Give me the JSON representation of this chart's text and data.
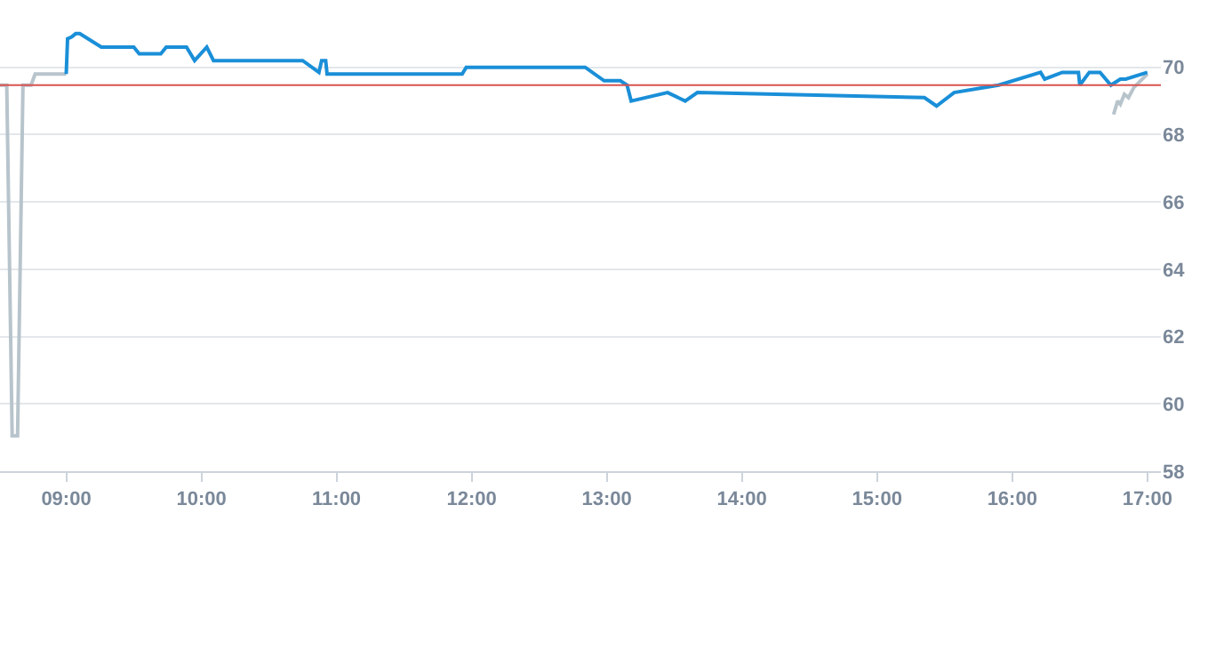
{
  "chart_data": {
    "type": "line",
    "xlim": [
      8.51,
      17.1
    ],
    "ylim": [
      58,
      72
    ],
    "xticks": [
      {
        "value": 9,
        "label": "09:00"
      },
      {
        "value": 10,
        "label": "10:00"
      },
      {
        "value": 11,
        "label": "11:00"
      },
      {
        "value": 12,
        "label": "12:00"
      },
      {
        "value": 13,
        "label": "13:00"
      },
      {
        "value": 14,
        "label": "14:00"
      },
      {
        "value": 15,
        "label": "15:00"
      },
      {
        "value": 16,
        "label": "16:00"
      },
      {
        "value": 17,
        "label": "17:00"
      }
    ],
    "yticks": [
      58,
      60,
      62,
      64,
      66,
      68,
      70
    ],
    "grid": "y",
    "marker": "none",
    "line_style": "solid",
    "series": [
      {
        "color": "#b8c4cc",
        "x": [
          8.51,
          8.56,
          8.6,
          8.64,
          8.68,
          8.74,
          8.77,
          9.0,
          null,
          16.75,
          16.78,
          16.8,
          16.83,
          16.86,
          16.9,
          17.0
        ],
        "values": [
          69.47,
          69.47,
          59.05,
          59.05,
          69.47,
          69.47,
          69.8,
          69.8,
          null,
          68.6,
          69.0,
          68.9,
          69.2,
          69.1,
          69.4,
          69.8
        ]
      },
      {
        "color": "#1a8fd8",
        "x": [
          9.0,
          9.01,
          9.04,
          9.07,
          9.1,
          9.26,
          9.5,
          9.54,
          9.7,
          9.74,
          9.89,
          9.95,
          10.04,
          10.09,
          10.75,
          10.87,
          10.89,
          10.92,
          10.93,
          11.93,
          11.96,
          12.84,
          12.98,
          13.1,
          13.15,
          13.18,
          13.45,
          13.58,
          13.67,
          15.35,
          15.44,
          15.57,
          15.9,
          16.21,
          16.24,
          16.37,
          16.49,
          16.5,
          16.57,
          16.65,
          16.73,
          16.8,
          16.84,
          17.0
        ],
        "values": [
          69.8,
          70.85,
          70.9,
          71.0,
          71.0,
          70.6,
          70.6,
          70.4,
          70.4,
          70.6,
          70.6,
          70.2,
          70.6,
          70.2,
          70.2,
          69.85,
          70.2,
          70.2,
          69.8,
          69.8,
          70.0,
          70.0,
          69.6,
          69.6,
          69.47,
          69.0,
          69.25,
          69.0,
          69.25,
          69.1,
          68.85,
          69.25,
          69.47,
          69.85,
          69.65,
          69.85,
          69.85,
          69.47,
          69.85,
          69.85,
          69.47,
          69.65,
          69.65,
          69.85
        ]
      }
    ],
    "ref_lines": [
      {
        "axis": "y",
        "value": 69.47,
        "color": "#d9534f"
      }
    ]
  }
}
